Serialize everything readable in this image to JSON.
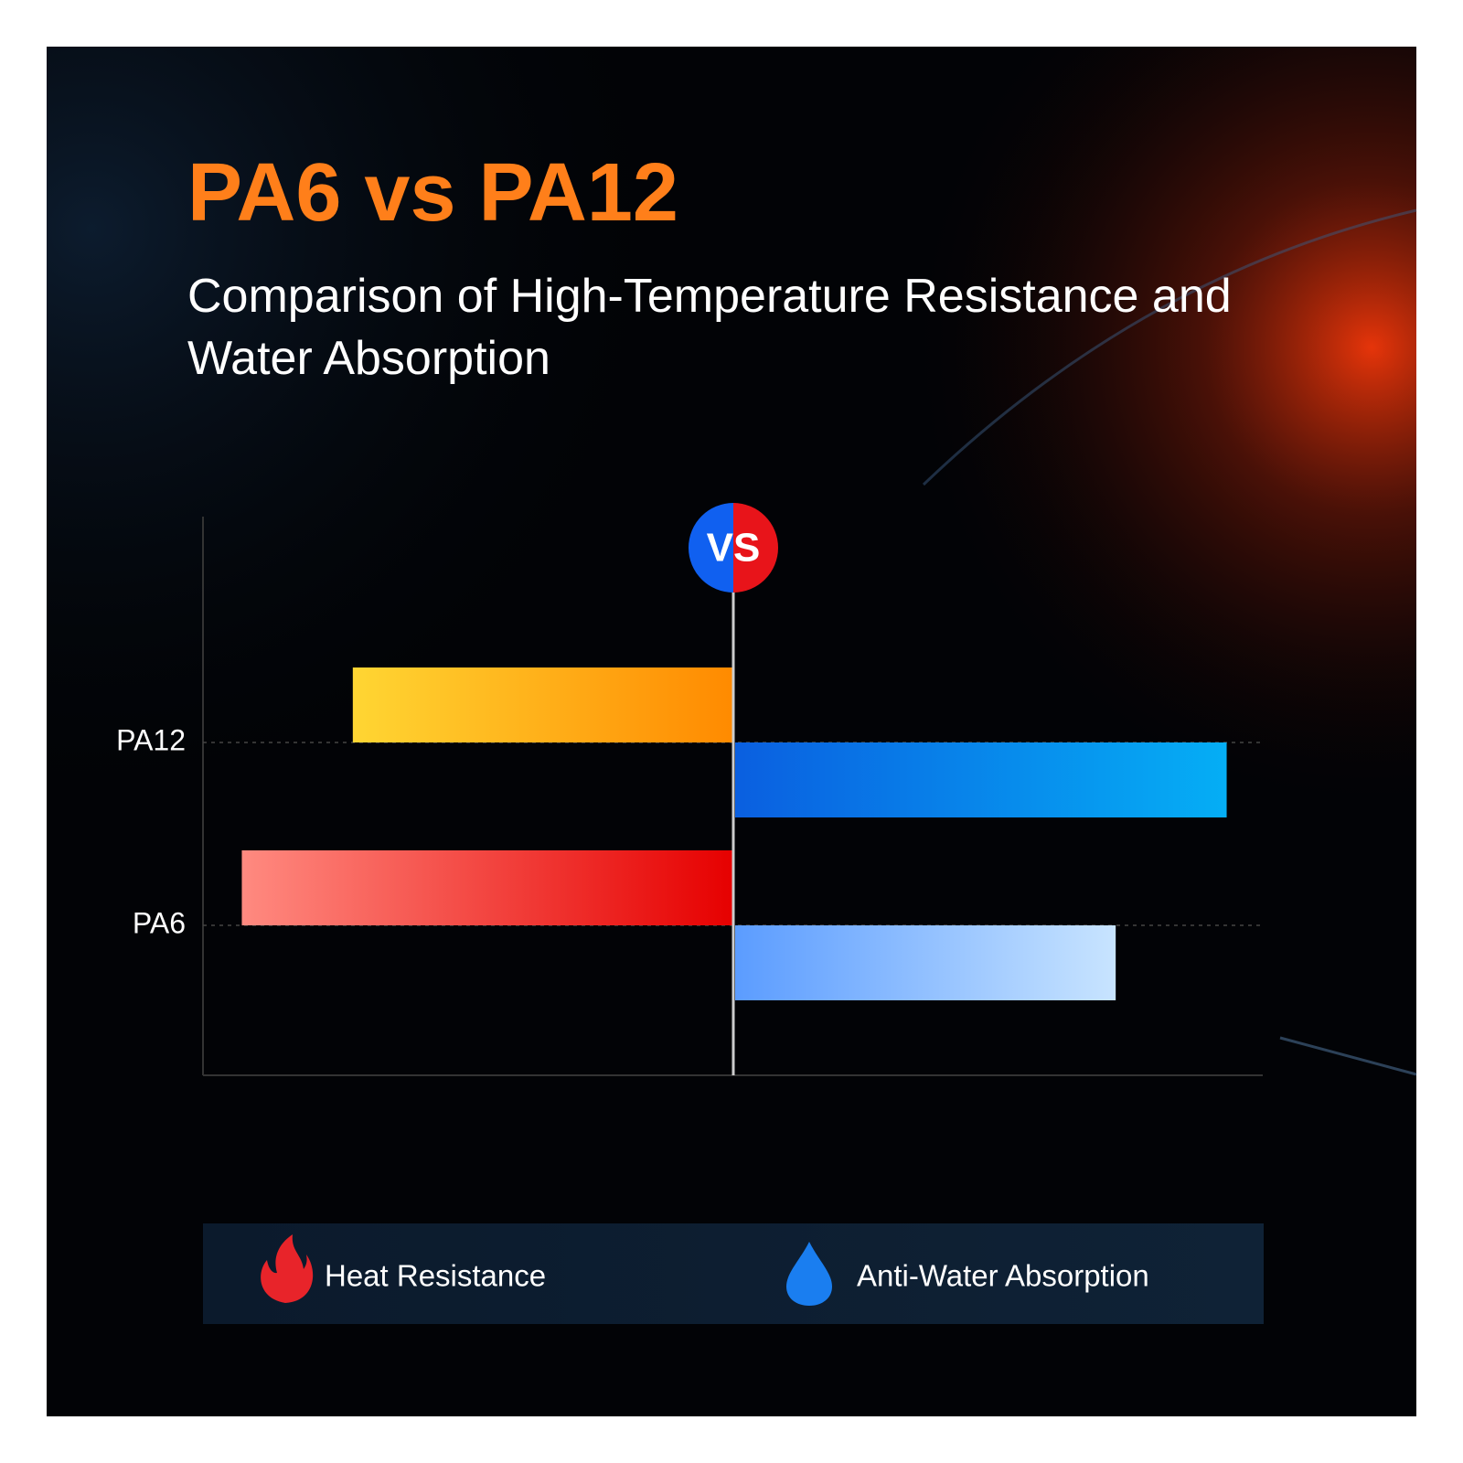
{
  "chart_data": {
    "type": "bar",
    "title": "PA6 vs PA12",
    "subtitle": "Comparison of High-Temperature Resistance and Water Absorption",
    "annotation": "VS",
    "categories": [
      "PA12",
      "PA6"
    ],
    "xlim": [
      0,
      10
    ],
    "series": [
      {
        "name": "Heat Resistance",
        "side": "left",
        "values": [
          7.2,
          9.3
        ],
        "color": [
          [
            "#ffd633",
            "#ff8a00"
          ],
          [
            "#ff8a80",
            "#e60000"
          ]
        ]
      },
      {
        "name": "Anti-Water Absorption",
        "side": "right",
        "values": [
          9.3,
          7.2
        ],
        "color": [
          [
            "#0a5fe0",
            "#05aef5"
          ],
          [
            "#5b9cff",
            "#c8e4ff"
          ]
        ]
      }
    ]
  }
}
